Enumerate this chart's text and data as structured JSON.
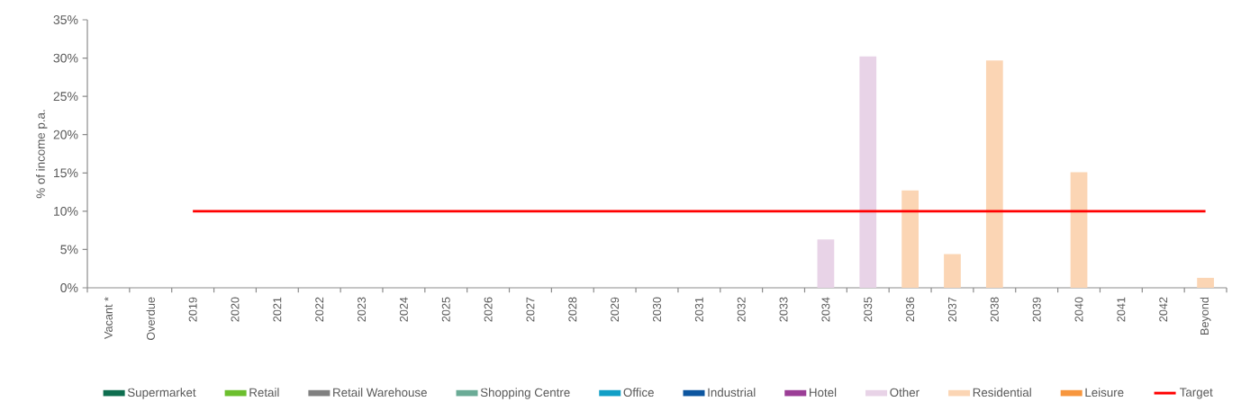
{
  "chart_data": {
    "type": "bar",
    "ylabel": "% of income p.a.",
    "categories": [
      "Vacant *",
      "Overdue",
      "2019",
      "2020",
      "2021",
      "2022",
      "2023",
      "2024",
      "2025",
      "2026",
      "2027",
      "2028",
      "2029",
      "2030",
      "2031",
      "2032",
      "2033",
      "2034",
      "2035",
      "2036",
      "2037",
      "2038",
      "2039",
      "2040",
      "2041",
      "2042",
      "Beyond"
    ],
    "series": [
      {
        "name": "Supermarket",
        "color": "#0e6e4f",
        "values": [
          null,
          null,
          null,
          null,
          null,
          null,
          null,
          null,
          null,
          null,
          null,
          null,
          null,
          null,
          null,
          null,
          null,
          null,
          null,
          null,
          null,
          null,
          null,
          null,
          null,
          null,
          null
        ]
      },
      {
        "name": "Retail",
        "color": "#6cbf2e",
        "values": [
          null,
          null,
          null,
          null,
          null,
          null,
          null,
          null,
          null,
          null,
          null,
          null,
          null,
          null,
          null,
          null,
          null,
          null,
          null,
          null,
          null,
          null,
          null,
          null,
          null,
          null,
          null
        ]
      },
      {
        "name": "Retail Warehouse",
        "color": "#808080",
        "values": [
          null,
          null,
          null,
          null,
          null,
          null,
          null,
          null,
          null,
          null,
          null,
          null,
          null,
          null,
          null,
          null,
          null,
          null,
          null,
          null,
          null,
          null,
          null,
          null,
          null,
          null,
          null
        ]
      },
      {
        "name": "Shopping Centre",
        "color": "#6aab96",
        "values": [
          null,
          null,
          null,
          null,
          null,
          null,
          null,
          null,
          null,
          null,
          null,
          null,
          null,
          null,
          null,
          null,
          null,
          null,
          null,
          null,
          null,
          null,
          null,
          null,
          null,
          null,
          null
        ]
      },
      {
        "name": "Office",
        "color": "#119fc6",
        "values": [
          null,
          null,
          null,
          null,
          null,
          null,
          null,
          null,
          null,
          null,
          null,
          null,
          null,
          null,
          null,
          null,
          null,
          null,
          null,
          null,
          null,
          null,
          null,
          null,
          null,
          null,
          null
        ]
      },
      {
        "name": "Industrial",
        "color": "#0d56a0",
        "values": [
          null,
          null,
          null,
          null,
          null,
          null,
          null,
          null,
          null,
          null,
          null,
          null,
          null,
          null,
          null,
          null,
          null,
          null,
          null,
          null,
          null,
          null,
          null,
          null,
          null,
          null,
          null
        ]
      },
      {
        "name": "Hotel",
        "color": "#9b3e96",
        "values": [
          null,
          null,
          null,
          null,
          null,
          null,
          null,
          null,
          null,
          null,
          null,
          null,
          null,
          null,
          null,
          null,
          null,
          null,
          null,
          null,
          null,
          null,
          null,
          null,
          null,
          null,
          null
        ]
      },
      {
        "name": "Other",
        "color": "#e8d3e7",
        "values": [
          null,
          null,
          null,
          null,
          null,
          null,
          null,
          null,
          null,
          null,
          null,
          null,
          null,
          null,
          null,
          null,
          null,
          6.3,
          30.2,
          null,
          null,
          null,
          null,
          null,
          null,
          null,
          null
        ]
      },
      {
        "name": "Residential",
        "color": "#fbd5b4",
        "values": [
          null,
          null,
          null,
          null,
          null,
          null,
          null,
          null,
          null,
          null,
          null,
          null,
          null,
          null,
          null,
          null,
          null,
          null,
          null,
          12.7,
          4.4,
          29.7,
          null,
          15.1,
          null,
          null,
          1.3
        ]
      },
      {
        "name": "Leisure",
        "color": "#f7963e",
        "values": [
          null,
          null,
          null,
          null,
          null,
          null,
          null,
          null,
          null,
          null,
          null,
          null,
          null,
          null,
          null,
          null,
          null,
          null,
          null,
          null,
          null,
          null,
          null,
          null,
          null,
          null,
          null
        ]
      },
      {
        "name": "Target",
        "type": "line",
        "color": "#ff0000",
        "values": [
          null,
          null,
          10,
          10,
          10,
          10,
          10,
          10,
          10,
          10,
          10,
          10,
          10,
          10,
          10,
          10,
          10,
          10,
          10,
          10,
          10,
          10,
          10,
          10,
          10,
          10,
          10
        ]
      }
    ],
    "ylim": [
      0,
      35
    ],
    "yticks": [
      {
        "value": 0,
        "label": "0%"
      },
      {
        "value": 5,
        "label": "5%"
      },
      {
        "value": 10,
        "label": "10%"
      },
      {
        "value": 15,
        "label": "15%"
      },
      {
        "value": 20,
        "label": "20%"
      },
      {
        "value": 25,
        "label": "25%"
      },
      {
        "value": 30,
        "label": "30%"
      },
      {
        "value": 35,
        "label": "35%"
      }
    ],
    "legend": "bottom",
    "marker": "none"
  }
}
